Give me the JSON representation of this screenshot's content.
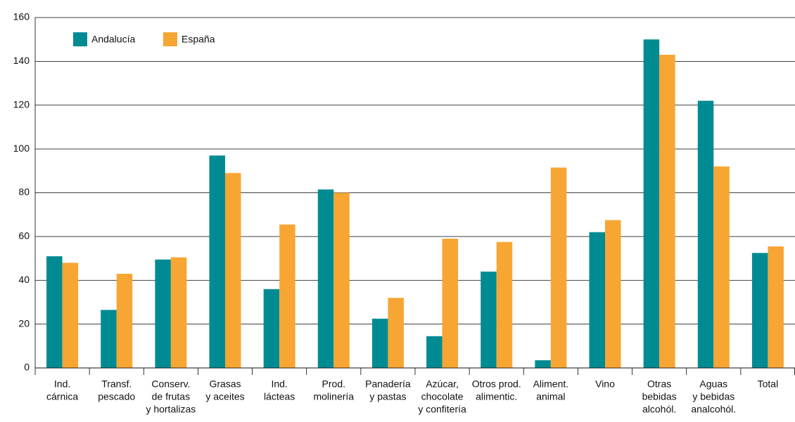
{
  "chart_data": {
    "type": "bar",
    "categories": [
      [
        "Ind.",
        "cárnica"
      ],
      [
        "Transf.",
        "pescado"
      ],
      [
        "Conserv.",
        "de frutas",
        "y hortalizas"
      ],
      [
        "Grasas",
        "y aceites"
      ],
      [
        "Ind.",
        "lácteas"
      ],
      [
        "Prod.",
        "molinería"
      ],
      [
        "Panadería",
        "y pastas"
      ],
      [
        "Azúcar,",
        "chocolate",
        "y confitería"
      ],
      [
        "Otros prod.",
        "alimentic."
      ],
      [
        "Aliment.",
        "animal"
      ],
      [
        "Vino"
      ],
      [
        "Otras",
        "bebidas",
        "alcohól."
      ],
      [
        "Aguas",
        "y bebidas",
        "analcohól."
      ],
      [
        "Total"
      ]
    ],
    "series": [
      {
        "name": "Andalucía",
        "color": "#008b93",
        "values": [
          51,
          26.5,
          49.5,
          97,
          36,
          81.5,
          22.5,
          14.5,
          44,
          3.5,
          62,
          150,
          122,
          52.5
        ]
      },
      {
        "name": "España",
        "color": "#f7a533",
        "values": [
          48,
          43,
          50.5,
          89,
          65.5,
          80,
          32,
          59,
          57.5,
          91.5,
          67.5,
          143,
          92,
          55.5
        ]
      }
    ],
    "ylim": [
      0,
      160
    ],
    "yticks": [
      0,
      20,
      40,
      60,
      80,
      100,
      120,
      140,
      160
    ],
    "grid": true,
    "legend": "top-left"
  }
}
